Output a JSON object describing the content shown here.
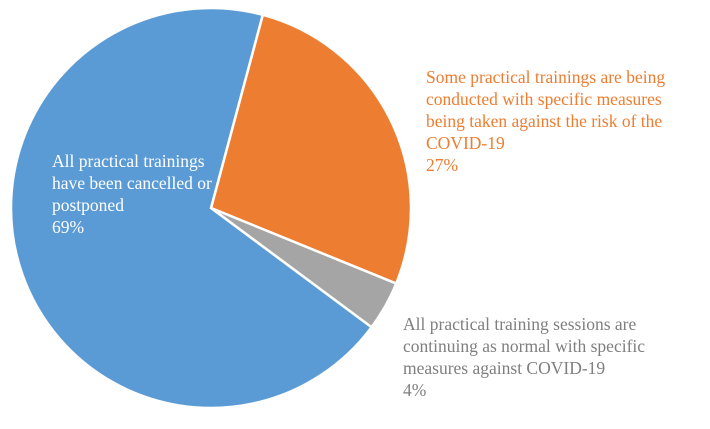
{
  "chart_data": {
    "type": "pie",
    "categories": [
      "All practical trainings have been cancelled or postponed",
      "Some practical trainings are being conducted with specific measures being taken against the risk of the COVID-19",
      "All practical training sessions are continuing as normal with specific measures against COVID-19"
    ],
    "values": [
      69,
      27,
      4
    ],
    "value_labels": [
      "69%",
      "27%",
      "4%"
    ],
    "colors": [
      "#5b9bd5",
      "#ed7d31",
      "#a5a5a5"
    ]
  }
}
